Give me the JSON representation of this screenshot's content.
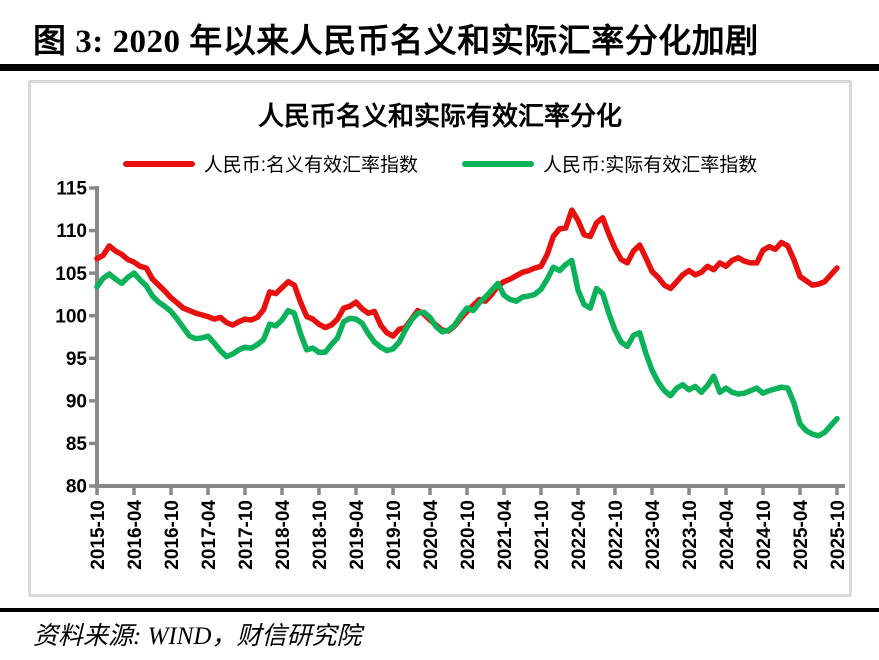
{
  "header": {
    "title": "图 3: 2020 年以来人民币名义和实际汇率分化加剧"
  },
  "footer": {
    "source": "资料来源: WIND，财信研究院"
  },
  "chart_data": {
    "type": "line",
    "title": "人民币名义和实际有效汇率分化",
    "x_start": "2015-10",
    "x_end": "2025-10",
    "frequency": "monthly",
    "x_tick_labels": [
      "2015-10",
      "2016-04",
      "2016-10",
      "2017-04",
      "2017-10",
      "2018-04",
      "2018-10",
      "2019-04",
      "2019-10",
      "2020-04",
      "2020-10",
      "2021-04",
      "2021-10",
      "2022-04",
      "2022-10",
      "2023-04",
      "2023-10",
      "2024-04",
      "2024-10",
      "2025-04",
      "2025-10"
    ],
    "ylim": [
      80,
      115
    ],
    "ytick_step": 5,
    "grid": false,
    "legend_position": "top",
    "axis_color": "#898989",
    "panel_border_color": "#d9d9d9",
    "series": [
      {
        "name": "人民币:名义有效汇率指数",
        "color": "#e8100c",
        "values": [
          106.7,
          107.1,
          108.2,
          107.6,
          107.2,
          106.6,
          106.3,
          105.8,
          105.6,
          104.3,
          103.6,
          102.9,
          102.1,
          101.5,
          100.9,
          100.6,
          100.3,
          100.1,
          99.9,
          99.6,
          99.8,
          99.2,
          98.9,
          99.3,
          99.6,
          99.5,
          99.8,
          100.7,
          102.8,
          102.6,
          103.3,
          104.0,
          103.6,
          101.6,
          99.9,
          99.6,
          99.0,
          98.6,
          98.9,
          99.6,
          100.9,
          101.1,
          101.6,
          100.8,
          100.3,
          100.5,
          98.9,
          98.0,
          97.6,
          98.4,
          98.6,
          99.6,
          100.6,
          100.2,
          99.5,
          98.9,
          98.3,
          98.2,
          98.8,
          99.7,
          100.5,
          101.2,
          101.9,
          101.7,
          102.5,
          103.5,
          104.0,
          104.3,
          104.7,
          105.1,
          105.3,
          105.6,
          105.8,
          107.2,
          109.3,
          110.2,
          110.3,
          112.4,
          111.2,
          109.5,
          109.3,
          110.9,
          111.5,
          109.6,
          107.9,
          106.6,
          106.2,
          107.6,
          108.3,
          106.8,
          105.2,
          104.5,
          103.6,
          103.2,
          104.0,
          104.8,
          105.3,
          104.8,
          105.1,
          105.8,
          105.4,
          106.2,
          105.8,
          106.5,
          106.8,
          106.4,
          106.2,
          106.2,
          107.7,
          108.1,
          107.8,
          108.6,
          108.2,
          106.6,
          104.6,
          104.1,
          103.6,
          103.7,
          104.0,
          104.8,
          105.6
        ]
      },
      {
        "name": "人民币:实际有效汇率指数",
        "color": "#0cb25a",
        "values": [
          103.4,
          104.4,
          104.9,
          104.3,
          103.8,
          104.5,
          105.0,
          104.2,
          103.5,
          102.3,
          101.6,
          101.1,
          100.5,
          99.6,
          98.6,
          97.6,
          97.3,
          97.4,
          97.6,
          96.8,
          95.9,
          95.2,
          95.5,
          96.0,
          96.3,
          96.2,
          96.6,
          97.2,
          99.0,
          98.8,
          99.5,
          100.6,
          100.3,
          97.9,
          96.0,
          96.2,
          95.7,
          95.7,
          96.6,
          97.4,
          99.3,
          99.7,
          99.6,
          99.1,
          97.9,
          96.9,
          96.3,
          95.9,
          96.1,
          96.9,
          98.3,
          99.5,
          100.3,
          100.4,
          99.8,
          98.7,
          98.1,
          98.3,
          98.9,
          100.0,
          100.9,
          100.6,
          101.5,
          102.2,
          103.0,
          103.8,
          102.4,
          101.9,
          101.7,
          102.2,
          102.3,
          102.5,
          103.1,
          104.3,
          105.7,
          105.3,
          106.0,
          106.5,
          103.0,
          101.3,
          100.9,
          103.2,
          102.6,
          100.3,
          98.3,
          96.9,
          96.4,
          97.7,
          98.0,
          95.6,
          93.6,
          92.2,
          91.2,
          90.6,
          91.5,
          91.9,
          91.3,
          91.7,
          91.0,
          91.8,
          92.9,
          91.0,
          91.5,
          91.0,
          90.8,
          90.9,
          91.2,
          91.5,
          90.9,
          91.2,
          91.4,
          91.6,
          91.5,
          89.8,
          87.3,
          86.5,
          86.1,
          85.9,
          86.3,
          87.1,
          87.9
        ]
      }
    ]
  }
}
